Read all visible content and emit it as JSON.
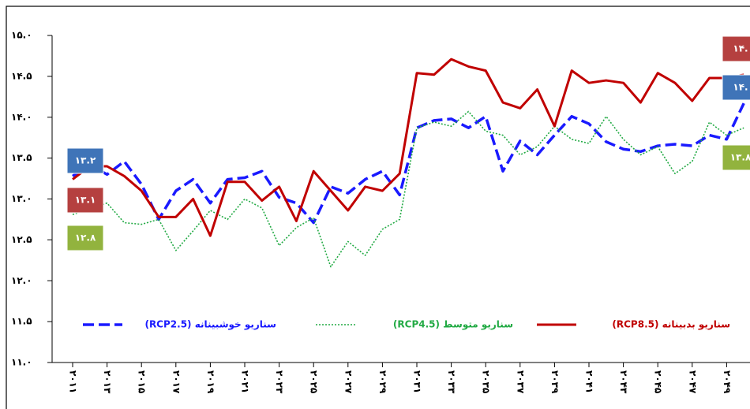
{
  "chart_data": {
    "type": "line",
    "categories": [
      "۲۰۱۱",
      null,
      "۲۰۱۳",
      null,
      "۲۰۱۵",
      null,
      "۲۰۱۷",
      null,
      "۲۰۱۹",
      null,
      "۲۰۲۱",
      null,
      "۲۰۲۳",
      null,
      "۲۰۲۵",
      null,
      "۲۰۲۷",
      null,
      "۲۰۲۹",
      null,
      "۲۰۳۱",
      null,
      "۲۰۳۳",
      null,
      "۲۰۳۵",
      null,
      "۲۰۳۷",
      null,
      "۲۰۳۹",
      null,
      "۲۰۴۱",
      null,
      "۲۰۴۳",
      null,
      "۲۰۴۵",
      null,
      "۲۰۴۷",
      null,
      "۲۰۴۹",
      null
    ],
    "series": [
      {
        "name": "سناریو خوشبینانه (RCP2.5)",
        "color": "#1a1aff",
        "dash": "dashed",
        "values": [
          13.28,
          13.42,
          13.3,
          13.46,
          13.18,
          12.75,
          13.1,
          13.24,
          12.95,
          13.24,
          13.26,
          13.34,
          13.02,
          12.95,
          12.71,
          13.15,
          13.07,
          13.24,
          13.34,
          13.05,
          13.87,
          13.96,
          13.98,
          13.87,
          14.01,
          13.34,
          13.71,
          13.54,
          13.78,
          14.01,
          13.92,
          13.7,
          13.61,
          13.58,
          13.65,
          13.67,
          13.65,
          13.78,
          13.73,
          14.17
        ]
      },
      {
        "name": "سناریو متوسط (RCP4.5)",
        "color": "#22aa44",
        "dash": "dotted",
        "values": [
          12.81,
          12.88,
          12.95,
          12.71,
          12.69,
          12.75,
          12.37,
          12.61,
          12.86,
          12.75,
          13.0,
          12.89,
          12.43,
          12.65,
          12.77,
          12.17,
          12.48,
          12.31,
          12.63,
          12.75,
          13.87,
          13.94,
          13.89,
          14.07,
          13.83,
          13.78,
          13.54,
          13.64,
          13.89,
          13.73,
          13.68,
          14.01,
          13.73,
          13.54,
          13.64,
          13.31,
          13.46,
          13.94,
          13.78,
          13.87
        ]
      },
      {
        "name": "سناریو بدبینانه (RCP8.5)",
        "color": "#c00000",
        "dash": "solid",
        "values": [
          13.24,
          13.4,
          13.4,
          13.28,
          13.1,
          12.78,
          12.78,
          13.0,
          12.55,
          13.21,
          13.21,
          12.98,
          13.15,
          12.73,
          13.34,
          13.1,
          12.86,
          13.15,
          13.1,
          13.31,
          14.54,
          14.52,
          14.71,
          14.62,
          14.57,
          14.18,
          14.11,
          14.34,
          13.89,
          14.57,
          14.42,
          14.45,
          14.42,
          14.18,
          14.54,
          14.42,
          14.2,
          14.48,
          14.48,
          14.52
        ]
      }
    ],
    "annotations": [
      {
        "text": "۱۳.۲",
        "color": "#3f74b8"
      },
      {
        "text": "۱۳.۱",
        "color": "#b5403f"
      },
      {
        "text": "۱۲.۸",
        "color": "#92b33e"
      },
      {
        "text": "۱۴.",
        "color": "#b5403f"
      },
      {
        "text": "۱۴.",
        "color": "#3f74b8"
      },
      {
        "text": "۱۳.۸",
        "color": "#92b33e"
      }
    ],
    "ylim": [
      11,
      15
    ],
    "yticks": [
      {
        "value": 11,
        "label": "۱۱.۰"
      },
      {
        "value": 11.5,
        "label": "۱۱.۵"
      },
      {
        "value": 12,
        "label": "۱۲.۰"
      },
      {
        "value": 12.5,
        "label": "۱۲.۵"
      },
      {
        "value": 13,
        "label": "۱۳.۰"
      },
      {
        "value": 13.5,
        "label": "۱۳.۵"
      },
      {
        "value": 14,
        "label": "۱۴.۰"
      },
      {
        "value": 14.5,
        "label": "۱۴.۵"
      },
      {
        "value": 15,
        "label": "۱۵.۰"
      }
    ],
    "grid": false
  }
}
